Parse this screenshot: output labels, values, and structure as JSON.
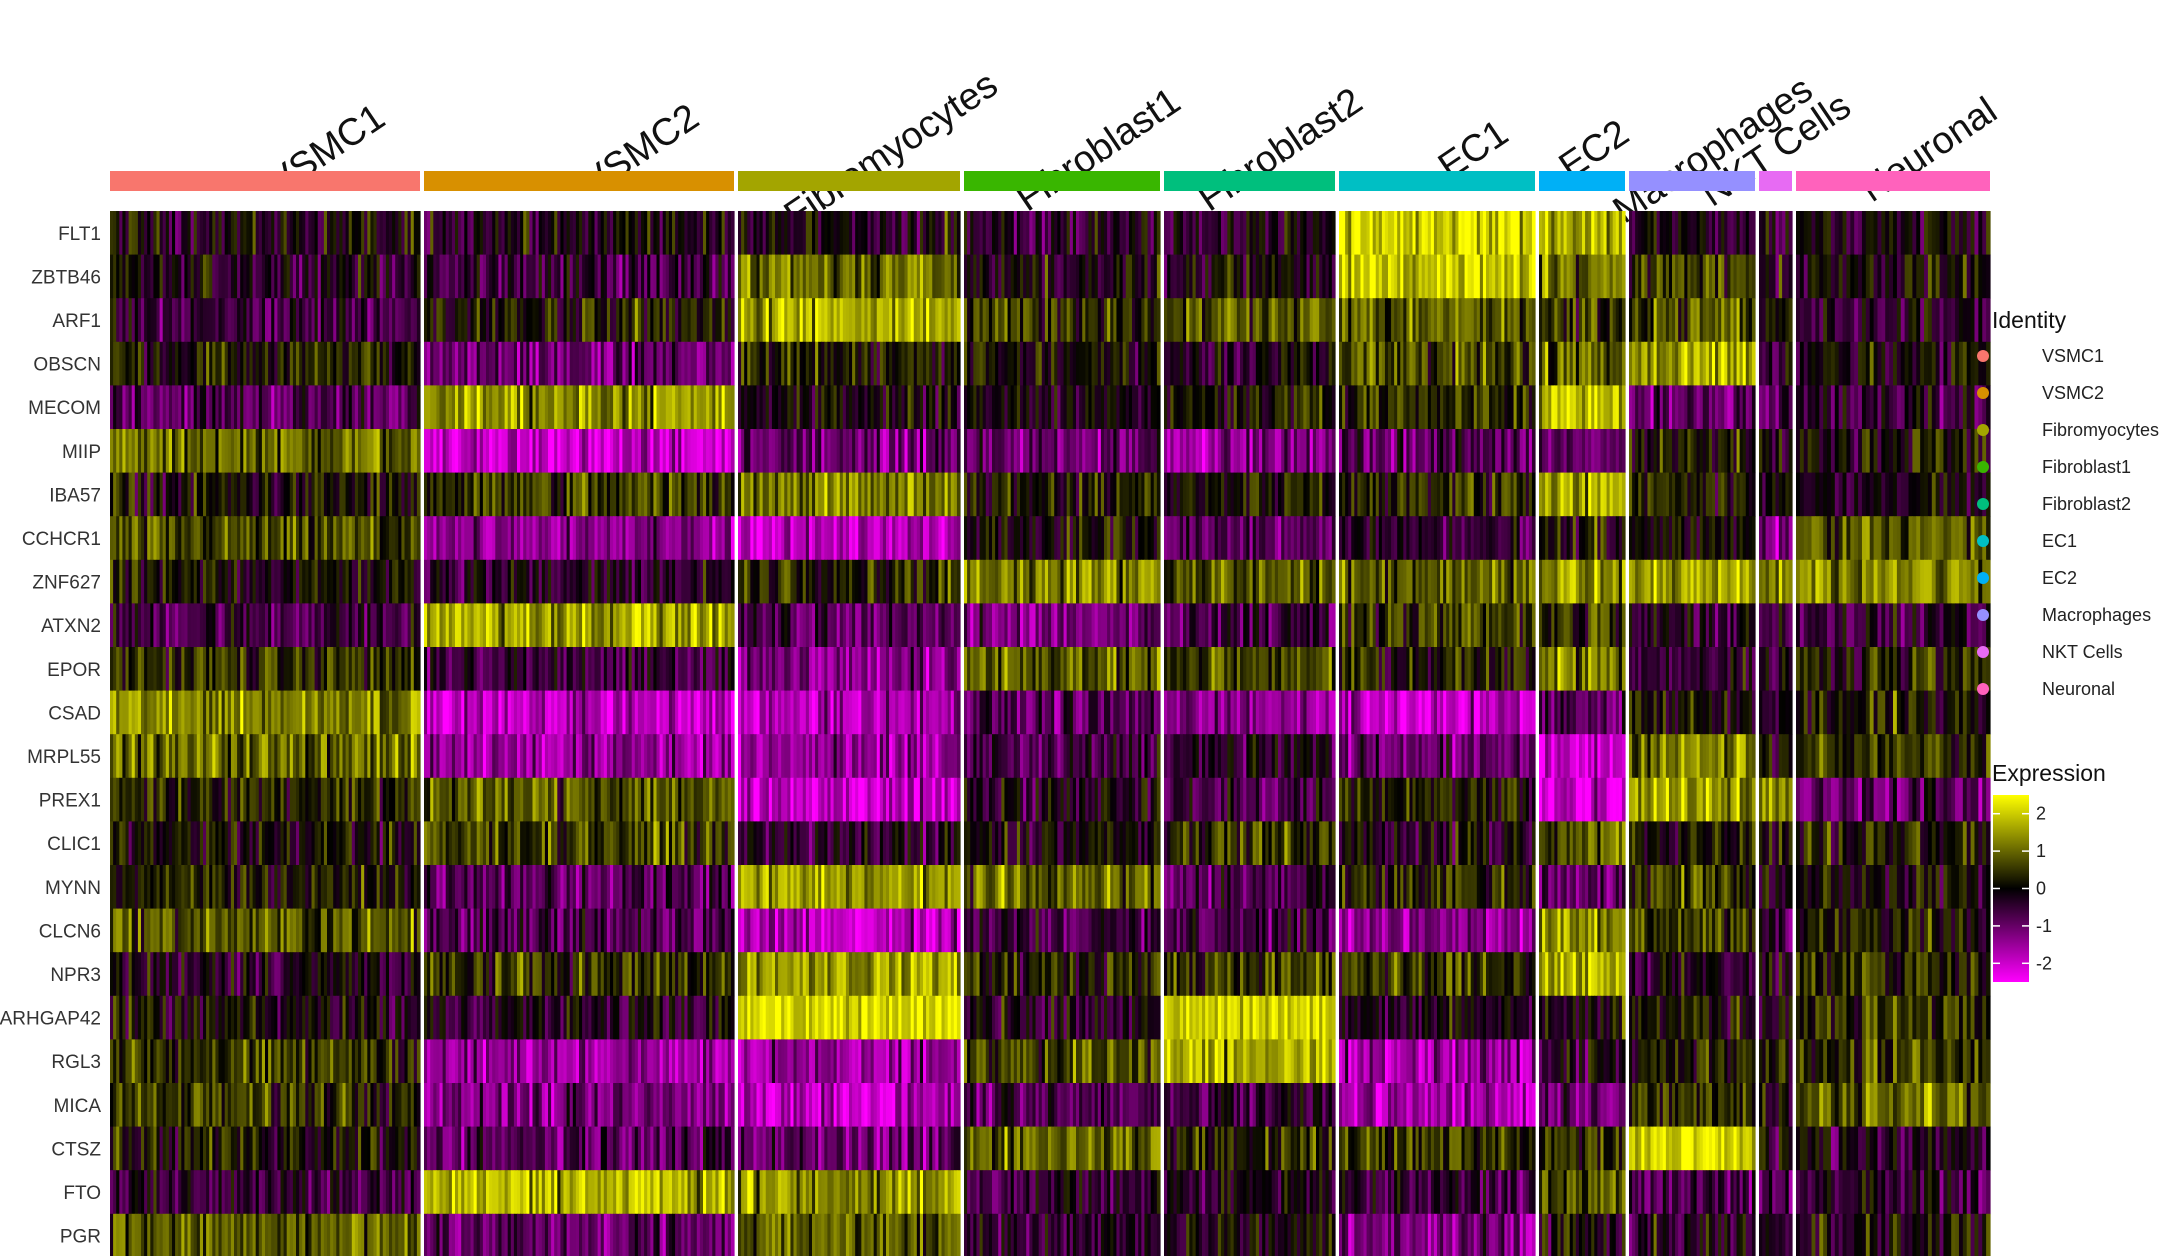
{
  "chart_data": {
    "type": "heatmap",
    "title": "",
    "clusters": [
      {
        "name": "VSMC1",
        "color": "#F8766D",
        "cells": 100
      },
      {
        "name": "VSMC2",
        "color": "#D89000",
        "cells": 100
      },
      {
        "name": "Fibromyocytes",
        "color": "#A3A500",
        "cells": 72
      },
      {
        "name": "Fibroblast1",
        "color": "#39B600",
        "cells": 63
      },
      {
        "name": "Fibroblast2",
        "color": "#00BF7D",
        "cells": 54
      },
      {
        "name": "EC1",
        "color": "#00BFC4",
        "cells": 64
      },
      {
        "name": "EC2",
        "color": "#00B0F6",
        "cells": 28
      },
      {
        "name": "Macrophages",
        "color": "#9590FF",
        "cells": 41
      },
      {
        "name": "NKT Cells",
        "color": "#E76BF3",
        "cells": 10
      },
      {
        "name": "Neuronal",
        "color": "#FF62BC",
        "cells": 50
      }
    ],
    "genes": [
      "FLT1",
      "ZBTB46",
      "ARF1",
      "OBSCN",
      "MECOM",
      "MIIP",
      "IBA57",
      "CCHCR1",
      "ZNF627",
      "ATXN2",
      "EPOR",
      "CSAD",
      "MRPL55",
      "PREX1",
      "CLIC1",
      "MYNN",
      "CLCN6",
      "NPR3",
      "ARHGAP42",
      "RGL3",
      "MICA",
      "CTSZ",
      "FTO",
      "PGR"
    ],
    "mean_expression": [
      [
        -0.1,
        -0.2,
        -0.1,
        -0.3,
        -0.3,
        2.2,
        1.6,
        -0.2,
        -0.3,
        -0.1
      ],
      [
        -0.2,
        -0.6,
        1.0,
        -0.1,
        0.0,
        2.0,
        1.2,
        0.5,
        0.0,
        0.0
      ],
      [
        -0.6,
        0.2,
        1.8,
        0.6,
        0.8,
        0.9,
        0.4,
        0.7,
        0.3,
        -0.4
      ],
      [
        0.2,
        -1.1,
        0.3,
        0.1,
        -0.2,
        0.8,
        0.9,
        1.7,
        -0.5,
        0.1
      ],
      [
        -0.8,
        1.4,
        0.0,
        -0.1,
        0.1,
        0.4,
        1.8,
        -0.9,
        -0.7,
        -0.5
      ],
      [
        1.0,
        -2.0,
        -1.0,
        -0.9,
        -1.3,
        -0.8,
        -1.0,
        0.2,
        0.0,
        0.1
      ],
      [
        0.0,
        0.5,
        1.2,
        0.3,
        0.2,
        0.4,
        1.7,
        0.4,
        0.0,
        -0.1
      ],
      [
        0.6,
        -1.3,
        -1.8,
        0.1,
        -0.8,
        -0.4,
        0.2,
        0.0,
        -1.4,
        0.8
      ],
      [
        0.0,
        -0.4,
        0.5,
        1.3,
        0.8,
        1.0,
        1.4,
        1.6,
        1.2,
        1.4
      ],
      [
        -0.6,
        1.6,
        -0.7,
        -1.1,
        -0.6,
        0.6,
        0.3,
        -0.3,
        -0.6,
        -0.4
      ],
      [
        0.4,
        -0.6,
        -1.3,
        1.0,
        0.7,
        0.2,
        1.1,
        -0.4,
        -0.3,
        0.3
      ],
      [
        1.3,
        -1.8,
        -1.7,
        -0.8,
        -1.4,
        -1.8,
        -0.8,
        0.0,
        -0.2,
        0.2
      ],
      [
        1.0,
        -1.5,
        -1.5,
        -0.6,
        -0.4,
        -1.0,
        -2.0,
        1.2,
        0.0,
        0.4
      ],
      [
        0.4,
        0.8,
        -2.0,
        -0.2,
        -0.5,
        0.3,
        -2.0,
        1.5,
        1.5,
        -0.8
      ],
      [
        0.0,
        0.6,
        -0.3,
        0.0,
        0.5,
        -0.1,
        0.9,
        0.3,
        0.0,
        0.2
      ],
      [
        0.2,
        -0.9,
        1.5,
        1.0,
        -0.6,
        0.4,
        -1.0,
        0.6,
        -0.3,
        0.0
      ],
      [
        0.8,
        -0.8,
        -1.8,
        -0.5,
        -0.6,
        -1.3,
        1.4,
        0.7,
        -0.4,
        0.3
      ],
      [
        -0.2,
        0.4,
        1.6,
        0.3,
        0.6,
        0.5,
        1.7,
        -0.3,
        0.0,
        0.4
      ],
      [
        -0.1,
        -0.3,
        2.2,
        -0.2,
        2.0,
        -0.2,
        0.0,
        0.1,
        0.0,
        0.5
      ],
      [
        0.5,
        -1.5,
        -1.5,
        0.8,
        1.6,
        -1.5,
        -0.3,
        0.3,
        0.2,
        0.5
      ],
      [
        0.5,
        -1.3,
        -1.8,
        -0.8,
        -0.6,
        -1.6,
        -1.0,
        0.4,
        0.1,
        1.0
      ],
      [
        0.2,
        -0.8,
        -1.0,
        1.1,
        0.4,
        0.5,
        0.3,
        2.0,
        0.0,
        -0.2
      ],
      [
        -0.5,
        1.8,
        1.4,
        -0.4,
        -0.3,
        -0.5,
        0.8,
        -0.8,
        -0.6,
        -0.4
      ],
      [
        0.8,
        -1.0,
        0.9,
        -0.3,
        -0.1,
        -1.2,
        0.1,
        -0.4,
        -0.2,
        0.0
      ]
    ],
    "color_scale": {
      "min": -2.5,
      "max": 2.5,
      "low": "#FF00FF",
      "mid": "#000000",
      "high": "#FFFF00"
    },
    "legend": {
      "identity_title": "Identity",
      "expression_title": "Expression",
      "expression_ticks": [
        2,
        1,
        0,
        -1,
        -2
      ],
      "placement": "right"
    }
  }
}
